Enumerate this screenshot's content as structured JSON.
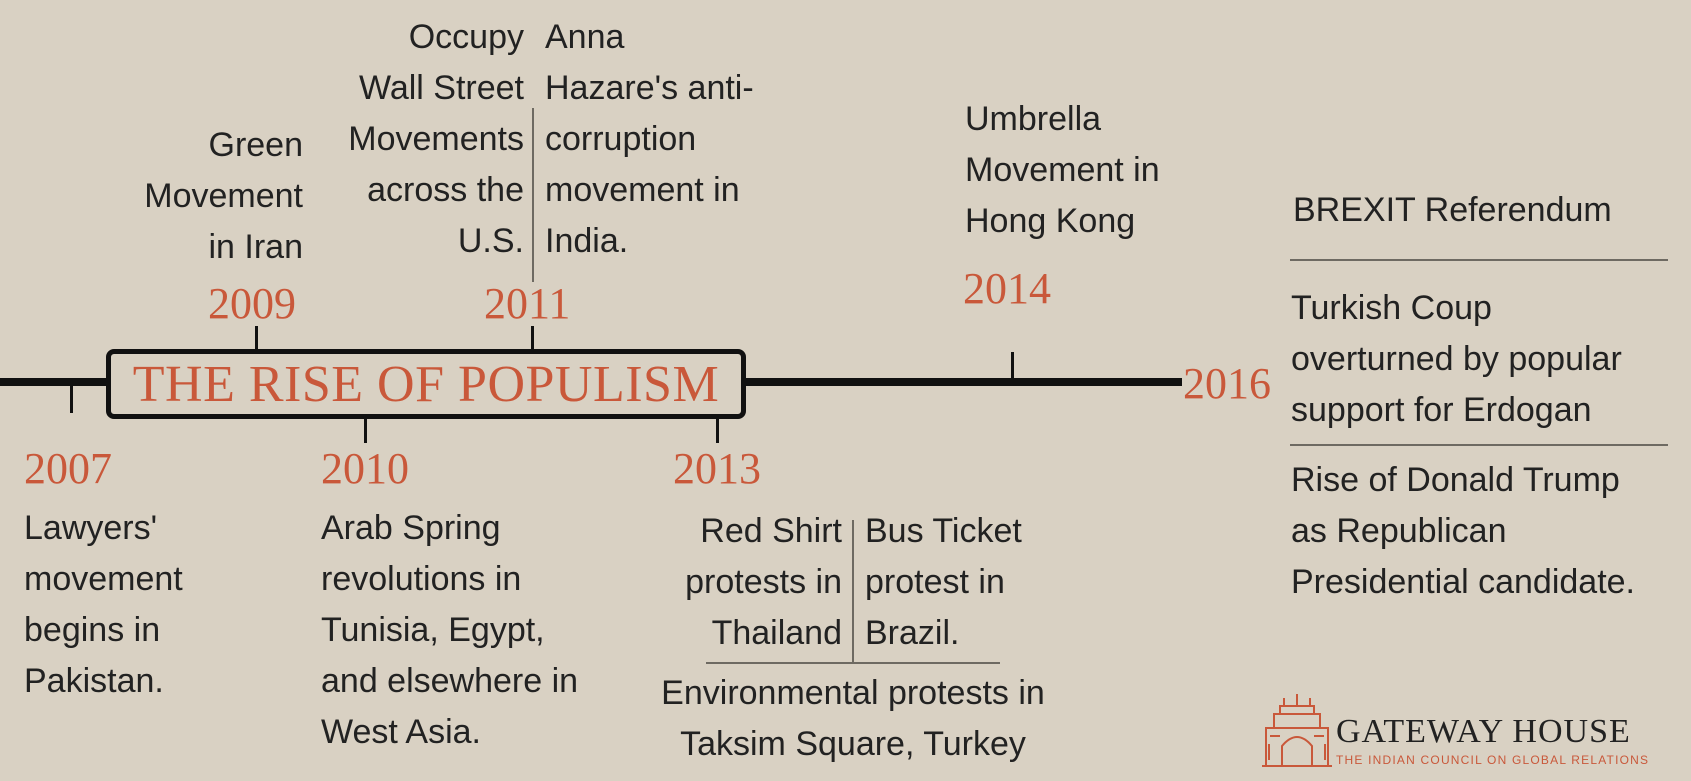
{
  "title": "THE RISE OF POPULISM",
  "events": {
    "y2007": {
      "year": "2007",
      "text": "Lawyers'\nmovement\nbegins in\nPakistan."
    },
    "y2009": {
      "year": "2009",
      "text": "Green\nMovement\nin Iran"
    },
    "y2010": {
      "year": "2010",
      "text": "Arab Spring\nrevolutions in\nTunisia, Egypt,\nand elsewhere in\nWest Asia."
    },
    "y2011": {
      "year": "2011",
      "left_text": "Occupy\nWall Street\nMovements\nacross the\nU.S.",
      "right_text": "Anna\nHazare's anti-\ncorruption\nmovement in\nIndia."
    },
    "y2013": {
      "year": "2013",
      "left_text": "Red Shirt\nprotests in\nThailand",
      "right_text": "Bus Ticket\nprotest in\nBrazil.",
      "bottom_text": "Environmental protests in\nTaksim Square, Turkey"
    },
    "y2014": {
      "year": "2014",
      "text": "Umbrella\nMovement in\nHong Kong"
    },
    "y2016": {
      "year": "2016",
      "items": [
        "BREXIT Referendum",
        "Turkish Coup\noverturned by popular\nsupport for Erdogan",
        "Rise of Donald Trump\nas Republican\nPresidential candidate."
      ]
    }
  },
  "logo": {
    "name": "GATEWAY HOUSE",
    "tagline": "THE INDIAN COUNCIL ON GLOBAL RELATIONS"
  },
  "colors": {
    "background": "#d9d1c3",
    "accent": "#c9583a",
    "text": "#222222",
    "line": "#111111"
  }
}
